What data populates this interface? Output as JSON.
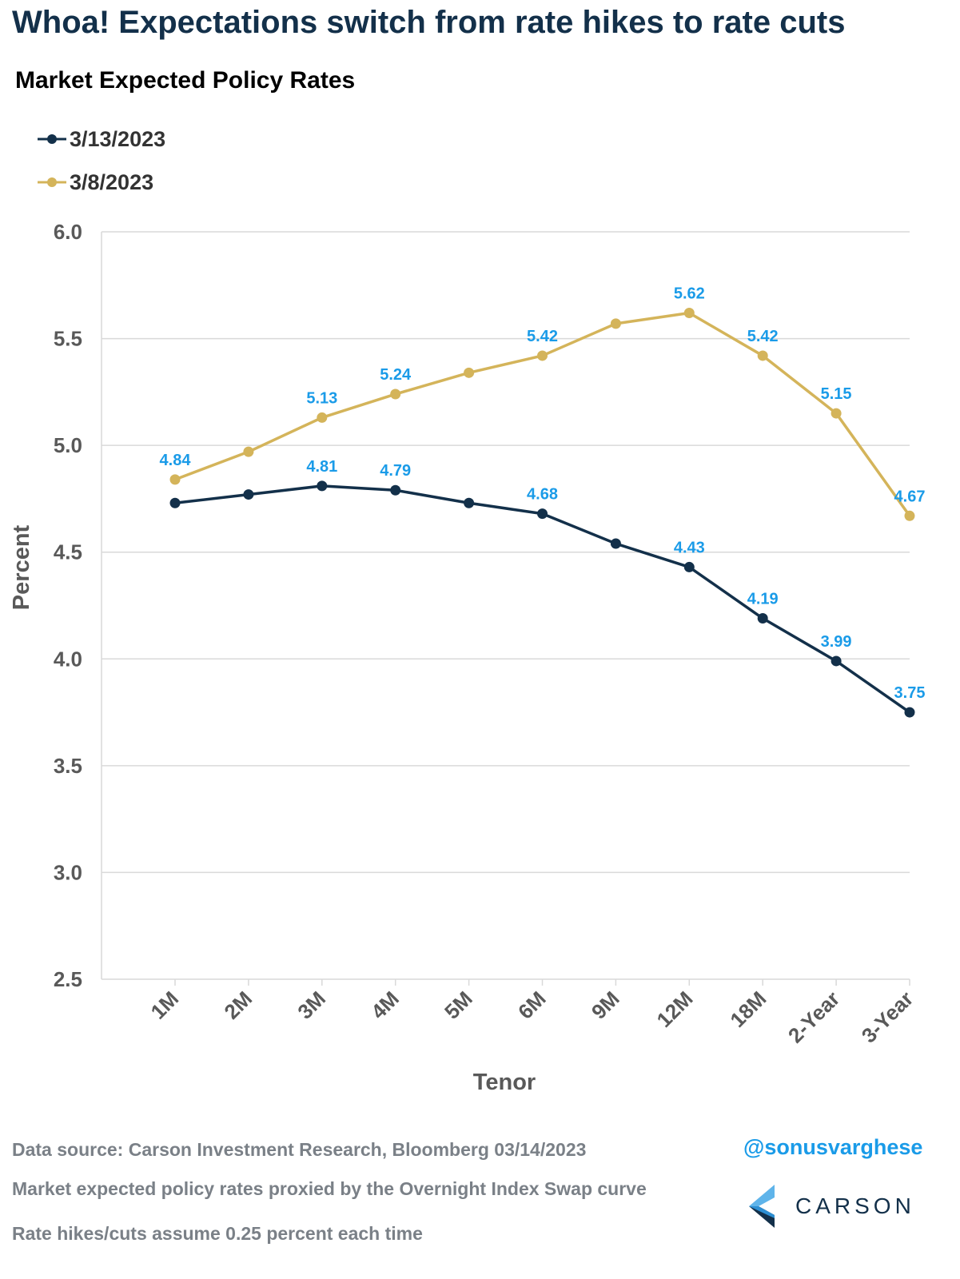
{
  "header": {
    "title": "Whoa! Expectations switch from rate hikes to rate cuts",
    "subtitle": "Market Expected Policy Rates"
  },
  "footer": {
    "source": "Data source: Carson Investment Research, Bloomberg   03/14/2023",
    "handle": "@sonusvarghese",
    "note_line1": "Market expected policy rates proxied by the Overnight Index Swap curve",
    "note_line2": "Rate hikes/cuts assume 0.25 percent each time",
    "logo_text": "CARSON"
  },
  "colors": {
    "series_2023_03_13": "#13304a",
    "series_2023_03_08": "#d4b45a",
    "data_label": "#1a9be8",
    "gridline": "#d9d9d9",
    "headline": "#13304a"
  },
  "chart_data": {
    "type": "line",
    "title": "Market Expected Policy Rates",
    "xlabel": "Tenor",
    "ylabel": "Percent",
    "ylim": [
      2.5,
      6.0
    ],
    "yticks": [
      "2.5",
      "3.0",
      "3.5",
      "4.0",
      "4.5",
      "5.0",
      "5.5",
      "6.0"
    ],
    "grid": true,
    "legend_position": "top-left",
    "categories": [
      "1M",
      "2M",
      "3M",
      "4M",
      "5M",
      "6M",
      "9M",
      "12M",
      "18M",
      "2-Year",
      "3-Year"
    ],
    "series": [
      {
        "name": "3/13/2023",
        "color": "#13304a",
        "values": [
          4.73,
          4.77,
          4.81,
          4.79,
          4.73,
          4.68,
          4.54,
          4.43,
          4.19,
          3.99,
          3.75
        ],
        "labels": [
          "",
          "",
          "4.81",
          "4.79",
          "",
          "4.68",
          "",
          "4.43",
          "4.19",
          "3.99",
          "3.75"
        ]
      },
      {
        "name": "3/8/2023",
        "color": "#d4b45a",
        "values": [
          4.84,
          4.97,
          5.13,
          5.24,
          5.34,
          5.42,
          5.57,
          5.62,
          5.42,
          5.15,
          4.67
        ],
        "labels": [
          "4.84",
          "",
          "5.13",
          "5.24",
          "",
          "5.42",
          "",
          "5.62",
          "5.42",
          "5.15",
          "4.67"
        ]
      }
    ]
  }
}
